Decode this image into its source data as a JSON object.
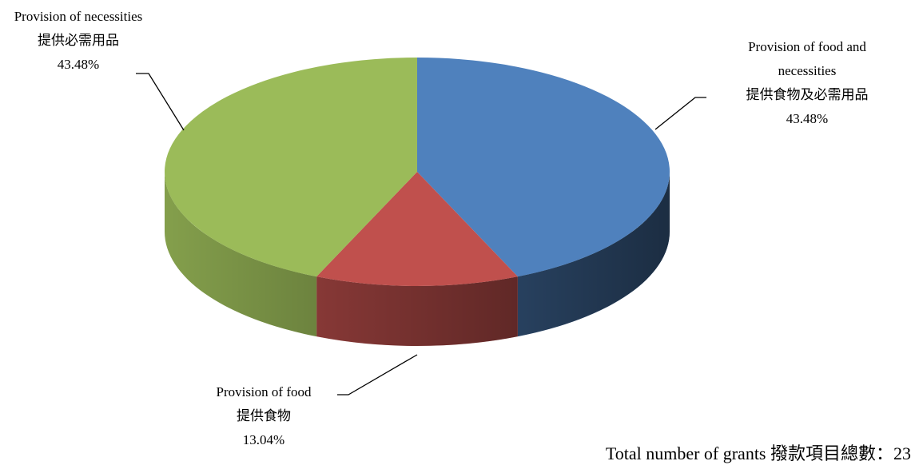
{
  "chart_data": {
    "type": "pie",
    "categories": [
      [
        "Provision of food and",
        "necessities",
        "提供食物及必需用品"
      ],
      [
        "Provision of food",
        "提供食物"
      ],
      [
        "Provision of necessities",
        "提供必需用品"
      ]
    ],
    "values": [
      43.48,
      13.04,
      43.48
    ],
    "value_labels": [
      "43.48%",
      "13.04%",
      "43.48%"
    ],
    "colors": [
      "#4f81bd",
      "#c0504d",
      "#9bbb59"
    ],
    "annotation": "Total number of grants 撥款項目總數：23"
  }
}
